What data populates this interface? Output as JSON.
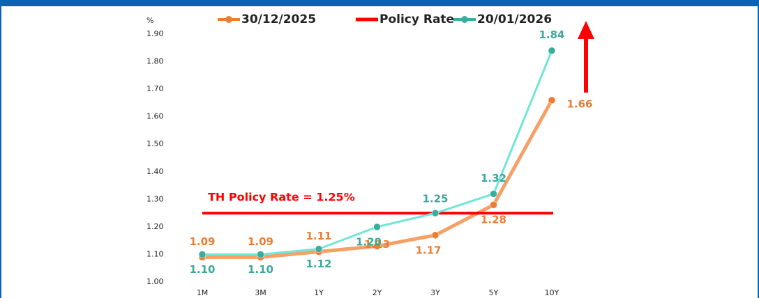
{
  "chart_data": {
    "type": "line",
    "y_unit": "%",
    "annotation": "TH Policy Rate = 1.25%",
    "categories": [
      "1M",
      "3M",
      "1Y",
      "2Y",
      "3Y",
      "5Y",
      "10Y"
    ],
    "series": [
      {
        "name": "30/12/2025",
        "color": "#ED7D31",
        "markers": true,
        "values": [
          1.09,
          1.09,
          1.11,
          1.13,
          1.17,
          1.28,
          1.66
        ],
        "value_labels": [
          "1.09",
          "1.09",
          "1.11",
          "1.13",
          "1.17",
          "1.28",
          "1.66"
        ]
      },
      {
        "name": "Policy Rate",
        "color": "#FF0000",
        "markers": false,
        "values": [
          1.25,
          1.25,
          1.25,
          1.25,
          1.25,
          1.25,
          1.25
        ]
      },
      {
        "name": "20/01/2026",
        "color": "#3AAE9E",
        "markers": true,
        "values": [
          1.1,
          1.1,
          1.12,
          1.2,
          1.25,
          1.32,
          1.84
        ],
        "value_labels": [
          "1.10",
          "1.10",
          "1.12",
          "1.20",
          "1.25",
          "1.32",
          "1.84"
        ]
      }
    ],
    "ylim": [
      1.0,
      1.9
    ],
    "yticks": [
      {
        "value": 1.0,
        "label": "1.00"
      },
      {
        "value": 1.1,
        "label": "1.10"
      },
      {
        "value": 1.2,
        "label": "1.20"
      },
      {
        "value": 1.3,
        "label": "1.30"
      },
      {
        "value": 1.4,
        "label": "1.40"
      },
      {
        "value": 1.5,
        "label": "1.50"
      },
      {
        "value": 1.6,
        "label": "1.60"
      },
      {
        "value": 1.7,
        "label": "1.70"
      },
      {
        "value": 1.8,
        "label": "1.80"
      },
      {
        "value": 1.9,
        "label": "1.90"
      }
    ],
    "grid": false
  }
}
